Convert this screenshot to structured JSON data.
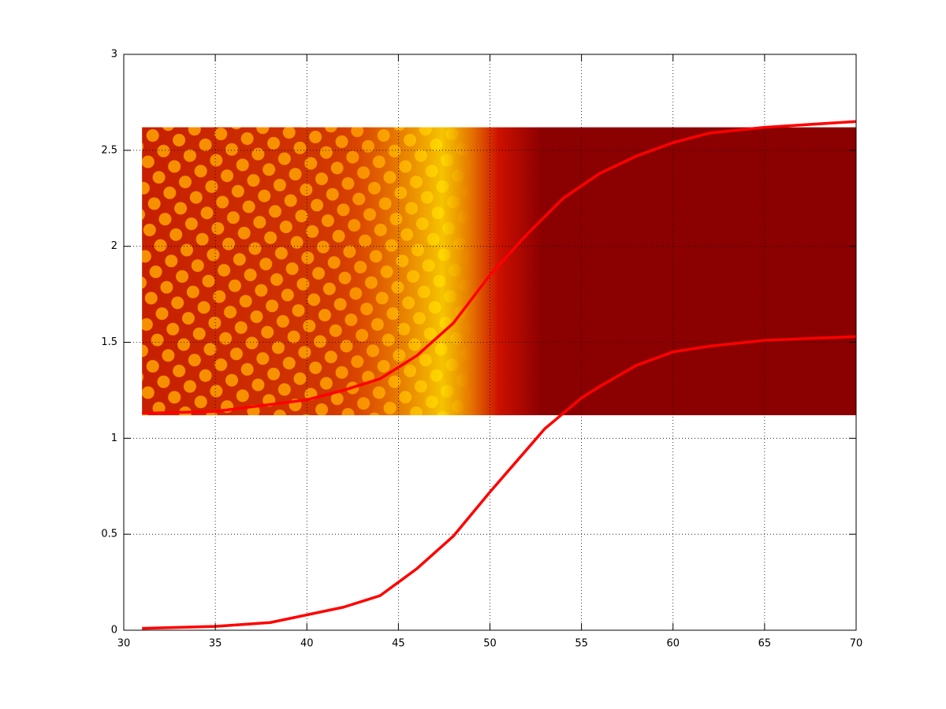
{
  "chart_data": {
    "type": "line",
    "xlim": [
      30,
      70
    ],
    "xticks": [
      30,
      35,
      40,
      45,
      50,
      55,
      60,
      65,
      70
    ],
    "ylim": [
      0,
      3
    ],
    "yticks": [
      0,
      0.5,
      1,
      1.5,
      2,
      2.5,
      3
    ],
    "grid": true,
    "heatmap": {
      "xlim": [
        31,
        70
      ],
      "ylim": [
        1.12,
        2.62
      ]
    },
    "series": [
      {
        "color": "#ff0000",
        "x": [
          31,
          35,
          38,
          40,
          42,
          44,
          46,
          48,
          50,
          52,
          53,
          54,
          55,
          56,
          58,
          60,
          62,
          65,
          70
        ],
        "values": [
          0.01,
          0.02,
          0.04,
          0.08,
          0.12,
          0.18,
          0.32,
          0.49,
          0.72,
          0.94,
          1.05,
          1.13,
          1.21,
          1.27,
          1.38,
          1.45,
          1.48,
          1.51,
          1.53
        ]
      },
      {
        "color": "#ff0000",
        "x": [
          31,
          35,
          40,
          42,
          44,
          46,
          48,
          50,
          52,
          54,
          56,
          58,
          60,
          62,
          65,
          70
        ],
        "values": [
          1.13,
          1.14,
          1.2,
          1.25,
          1.31,
          1.43,
          1.6,
          1.85,
          2.06,
          2.25,
          2.38,
          2.47,
          2.54,
          2.59,
          2.62,
          2.65
        ]
      }
    ]
  }
}
